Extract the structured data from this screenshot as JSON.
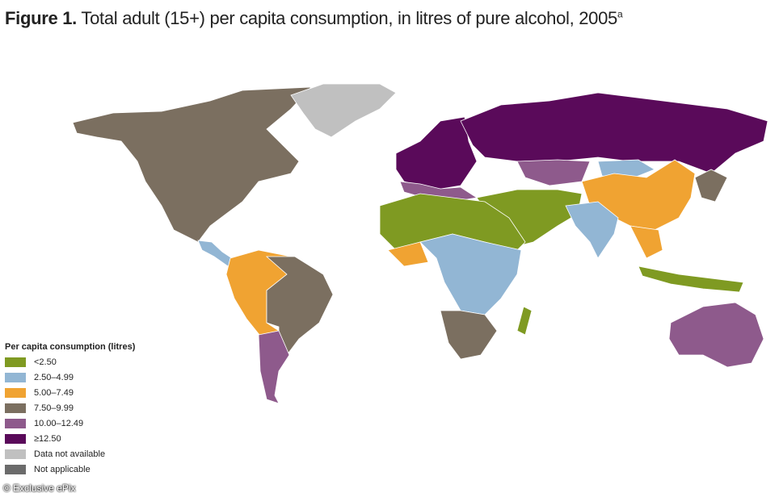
{
  "header": {
    "label": "Figure 1.",
    "text": "Total adult (15+) per capita consumption, in litres of pure alcohol, 2005",
    "superscript": "a"
  },
  "legend": {
    "title": "Per capita consumption (litres)",
    "items": [
      {
        "label": "<2.50",
        "color": "#7f9a22"
      },
      {
        "label": "2.50–4.99",
        "color": "#92b6d4"
      },
      {
        "label": "5.00–7.49",
        "color": "#f0a332"
      },
      {
        "label": "7.50–9.99",
        "color": "#7b6f60"
      },
      {
        "label": "10.00–12.49",
        "color": "#8e5a8c"
      },
      {
        "label": "≥12.50",
        "color": "#5a0a5a"
      },
      {
        "label": "Data not available",
        "color": "#c0c0c0"
      },
      {
        "label": "Not applicable",
        "color": "#6b6b6b"
      }
    ]
  },
  "watermark": "© Exclusive ePix"
}
